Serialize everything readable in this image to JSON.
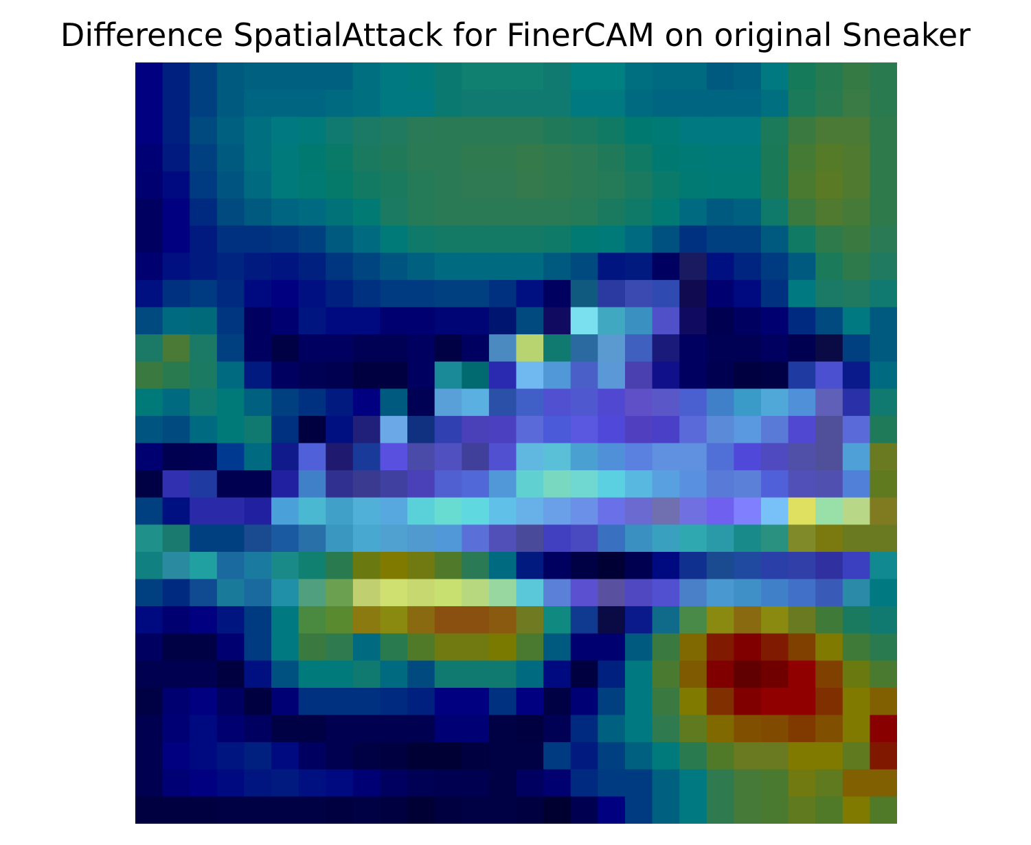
{
  "title": "Difference SpatialAttack for FinerCAM on original Sneaker",
  "chart_data": {
    "type": "heatmap",
    "title": "Difference SpatialAttack for FinerCAM on original Sneaker",
    "xlabel": "",
    "ylabel": "",
    "axes_visible": false,
    "grid": false,
    "legend": "none",
    "rows": 28,
    "cols": 28,
    "cells": [
      [
        "#000080",
        "#002080",
        "#004080",
        "#005a80",
        "#006080",
        "#006080",
        "#006080",
        "#006080",
        "#007080",
        "#007a80",
        "#007a7a",
        "#0a7a70",
        "#108070",
        "#108070",
        "#108070",
        "#107a70",
        "#008080",
        "#008080",
        "#007080",
        "#006a80",
        "#006a80",
        "#005a80",
        "#006080",
        "#007a80",
        "#157a5a",
        "#257a50",
        "#357a45",
        "#2a7a50"
      ],
      [
        "#000080",
        "#002080",
        "#004080",
        "#005a80",
        "#006580",
        "#006580",
        "#006580",
        "#006a80",
        "#007080",
        "#007a80",
        "#007a80",
        "#0a7a70",
        "#107a70",
        "#107a70",
        "#107a70",
        "#107a70",
        "#007a80",
        "#007a80",
        "#006a80",
        "#006580",
        "#006580",
        "#006580",
        "#006580",
        "#007080",
        "#1a7a5a",
        "#2a7a50",
        "#3a7a45",
        "#2a7a50"
      ],
      [
        "#000080",
        "#002080",
        "#004a80",
        "#006080",
        "#007080",
        "#007a80",
        "#007a7a",
        "#107a70",
        "#1a7a65",
        "#207a60",
        "#2a7a58",
        "#2a7a55",
        "#2a7a55",
        "#2a7a55",
        "#2a7a55",
        "#207a5a",
        "#1a7a60",
        "#107a65",
        "#007a70",
        "#007a75",
        "#007a80",
        "#007a80",
        "#007a80",
        "#1a7a5a",
        "#3a7a40",
        "#4a7a35",
        "#4a7a35",
        "#2f7a4a"
      ],
      [
        "#000075",
        "#001a80",
        "#004080",
        "#005a80",
        "#007080",
        "#007a7a",
        "#007a70",
        "#0a7a68",
        "#1a7a60",
        "#207a5a",
        "#2a7a55",
        "#2a7a55",
        "#307a50",
        "#307a50",
        "#357a4a",
        "#307a50",
        "#2a7a55",
        "#207a5a",
        "#107a65",
        "#007a70",
        "#007a75",
        "#007a78",
        "#007a78",
        "#1a7a58",
        "#457a35",
        "#557a28",
        "#507a2f",
        "#2f7a4a"
      ],
      [
        "#000070",
        "#000a80",
        "#003a80",
        "#005580",
        "#006a80",
        "#007a7a",
        "#007a72",
        "#057a6a",
        "#127a62",
        "#1a7a5d",
        "#257a58",
        "#2a7a55",
        "#2f7a52",
        "#2f7a52",
        "#357a4d",
        "#307a50",
        "#2a7a55",
        "#257a58",
        "#1a7a60",
        "#0a7a6a",
        "#007a72",
        "#007a75",
        "#007a75",
        "#1a7a58",
        "#4a7a30",
        "#5a7a25",
        "#507a2f",
        "#2f7a4a"
      ],
      [
        "#000060",
        "#000080",
        "#002a80",
        "#004a80",
        "#005a80",
        "#006580",
        "#006a80",
        "#007278",
        "#007a72",
        "#1a7a62",
        "#257a58",
        "#2a7a55",
        "#2a7a55",
        "#2a7a55",
        "#2a7a55",
        "#2a7a55",
        "#257a58",
        "#1a7a60",
        "#107a68",
        "#007a72",
        "#006a80",
        "#005a80",
        "#006080",
        "#107a6a",
        "#3a7a3f",
        "#4f7a2f",
        "#457a38",
        "#2f7a4a"
      ],
      [
        "#000060",
        "#000080",
        "#001a80",
        "#003080",
        "#003080",
        "#003580",
        "#004080",
        "#005a80",
        "#006a80",
        "#007a78",
        "#107a6a",
        "#157a65",
        "#157a65",
        "#157a65",
        "#157a65",
        "#107a68",
        "#007a72",
        "#007a78",
        "#006a80",
        "#005080",
        "#003080",
        "#004080",
        "#004080",
        "#005a80",
        "#107a65",
        "#2f7a4a",
        "#3a7a40",
        "#2a7a55"
      ],
      [
        "#000070",
        "#001080",
        "#001a80",
        "#002580",
        "#001a80",
        "#001580",
        "#002080",
        "#003580",
        "#004580",
        "#005580",
        "#006080",
        "#006a80",
        "#006a80",
        "#006a80",
        "#006a80",
        "#005a80",
        "#004a80",
        "#001580",
        "#001a80",
        "#000060",
        "#1a1a60",
        "#001080",
        "#002580",
        "#003a80",
        "#005a80",
        "#1a7a5a",
        "#2f7a4a",
        "#1f7a5f"
      ],
      [
        "#001080",
        "#003080",
        "#003a80",
        "#002a80",
        "#000a80",
        "#000080",
        "#001080",
        "#002080",
        "#003080",
        "#003a80",
        "#003a80",
        "#004080",
        "#004080",
        "#003080",
        "#001080",
        "#000060",
        "#105a80",
        "#2a3aa0",
        "#3a4ab0",
        "#2f4ab0",
        "#100a50",
        "#000070",
        "#000a80",
        "#003080",
        "#007a80",
        "#1a7a65",
        "#1f7a60",
        "#107a70"
      ],
      [
        "#004a80",
        "#006a80",
        "#006a7a",
        "#003580",
        "#000060",
        "#000070",
        "#001580",
        "#000a80",
        "#000a80",
        "#000070",
        "#000070",
        "#000575",
        "#000575",
        "#001570",
        "#004a80",
        "#100a60",
        "#7ae0f0",
        "#40a8c0",
        "#3a90c0",
        "#5050c8",
        "#100a60",
        "#000050",
        "#000060",
        "#000070",
        "#002a80",
        "#004a80",
        "#007a80",
        "#005a80"
      ],
      [
        "#1a7a65",
        "#4a7a35",
        "#1a7a65",
        "#004080",
        "#000060",
        "#000045",
        "#000060",
        "#000060",
        "#000055",
        "#000055",
        "#000060",
        "#000045",
        "#000060",
        "#4a8ac0",
        "#b8d470",
        "#107a70",
        "#2a6aa0",
        "#5a9ad0",
        "#4060c0",
        "#1a1a7a",
        "#000060",
        "#000055",
        "#000055",
        "#000060",
        "#000050",
        "#0a0a45",
        "#004080",
        "#005a80"
      ],
      [
        "#3a7a40",
        "#2a7a50",
        "#1a7a62",
        "#006a80",
        "#001a80",
        "#000060",
        "#000055",
        "#000050",
        "#000040",
        "#000040",
        "#000060",
        "#1a8a98",
        "#006a70",
        "#2a2ab0",
        "#70b8f0",
        "#5098d8",
        "#4a60c8",
        "#5a98d8",
        "#4a40b0",
        "#10108a",
        "#000060",
        "#000050",
        "#000040",
        "#000045",
        "#1f3aa0",
        "#4a50d0",
        "#0a1a8a",
        "#006a80"
      ],
      [
        "#007a78",
        "#006a80",
        "#107a70",
        "#007a78",
        "#006080",
        "#004080",
        "#003080",
        "#001a80",
        "#000080",
        "#005a80",
        "#000055",
        "#5aa0d8",
        "#5ab0e0",
        "#2a50a8",
        "#4060c8",
        "#5050d0",
        "#5058d0",
        "#5048d0",
        "#6050c8",
        "#5a58c8",
        "#4a60d0",
        "#4080c8",
        "#3a9ac8",
        "#50a8d8",
        "#5090d8",
        "#6060b8",
        "#2a30a8",
        "#107a70"
      ],
      [
        "#005580",
        "#004a80",
        "#006a80",
        "#007a78",
        "#107a70",
        "#003080",
        "#000040",
        "#001080",
        "#20207a",
        "#6aa8e8",
        "#103080",
        "#3040b0",
        "#4a40b8",
        "#4a40c0",
        "#5a6ad8",
        "#4a5ad8",
        "#5a58e0",
        "#5048d8",
        "#5040c0",
        "#4a40c8",
        "#5a6ad8",
        "#5a8ad8",
        "#5a98e0",
        "#5a7ad8",
        "#5048d0",
        "#50509a",
        "#5a6ad8",
        "#1f7a5a"
      ],
      [
        "#000070",
        "#000050",
        "#000055",
        "#003a90",
        "#006a80",
        "#101a8a",
        "#5060d8",
        "#1f1a70",
        "#1a3a9a",
        "#5a50e0",
        "#4a4aa8",
        "#5050c0",
        "#40409a",
        "#5050d0",
        "#60b8e0",
        "#5ac0d8",
        "#4aa0d0",
        "#5090d8",
        "#5a80e0",
        "#6090e0",
        "#6090e0",
        "#5070d8",
        "#5048d8",
        "#504ac0",
        "#5050a8",
        "#50509a",
        "#50a0d8",
        "#6a7a20"
      ],
      [
        "#000045",
        "#3030b0",
        "#1f3aa0",
        "#000050",
        "#000050",
        "#2020a0",
        "#4080c8",
        "#303090",
        "#3a3a90",
        "#4040a0",
        "#4a40b8",
        "#5060d0",
        "#5068d8",
        "#5098d8",
        "#60d0d0",
        "#78d8c0",
        "#70d8d0",
        "#5ad0e0",
        "#58b8e0",
        "#58a0e0",
        "#5a90e0",
        "#5a7ad8",
        "#5a80d8",
        "#5060d8",
        "#5050b8",
        "#5050b0",
        "#5080d8",
        "#607a20"
      ],
      [
        "#004080",
        "#001080",
        "#2a2aa8",
        "#2a2aa8",
        "#2020a0",
        "#4aa0d8",
        "#4ab8d0",
        "#40a0c8",
        "#50b0d8",
        "#58a8e0",
        "#5ad0d8",
        "#68dcd0",
        "#60d8e0",
        "#60c0e8",
        "#68b0e8",
        "#6aa0e8",
        "#6a90e8",
        "#6a70e8",
        "#6a6ad0",
        "#7070b0",
        "#7070e0",
        "#7060f0",
        "#8080ff",
        "#78c0f8",
        "#e0e060",
        "#98e0a8",
        "#b8d888",
        "#807a20"
      ],
      [
        "#20908a",
        "#1a7a70",
        "#004080",
        "#004080",
        "#1a4a90",
        "#1a5aa0",
        "#2a70a8",
        "#3a98c0",
        "#48a8d0",
        "#50a0d0",
        "#509ad0",
        "#5098d8",
        "#5a70d8",
        "#5050b8",
        "#4a4a9a",
        "#4040c0",
        "#4a4ac0",
        "#3a70c0",
        "#3a90c0",
        "#3aa0c0",
        "#30a8b0",
        "#2a9aa8",
        "#188a8a",
        "#2a9080",
        "#808a28",
        "#7a7a10",
        "#6a7a20",
        "#6a7a20"
      ],
      [
        "#108080",
        "#2a8aa0",
        "#20a0a0",
        "#1a6aa0",
        "#1a7aa0",
        "#1a8a88",
        "#108070",
        "#2a7a50",
        "#6a7a10",
        "#807a00",
        "#707a10",
        "#507a2a",
        "#2a7a55",
        "#006a80",
        "#001a80",
        "#000060",
        "#000045",
        "#000035",
        "#000050",
        "#000a80",
        "#103090",
        "#1a4a90",
        "#1f4aa0",
        "#2a40a8",
        "#3040a8",
        "#3030a0",
        "#3a40c0",
        "#108a90"
      ],
      [
        "#004080",
        "#002a80",
        "#104a90",
        "#1a7a9a",
        "#1a6aa0",
        "#2090a8",
        "#50a080",
        "#6aa050",
        "#c0d070",
        "#d0e070",
        "#c8d870",
        "#c8e070",
        "#b8d880",
        "#98d8a0",
        "#5ac8d8",
        "#5a80d8",
        "#5a50d0",
        "#5a50a0",
        "#5048c0",
        "#5050d0",
        "#4a80c8",
        "#4a98d0",
        "#4090c8",
        "#4080c8",
        "#4070c8",
        "#3a5ab8",
        "#2a8aa8",
        "#007a80"
      ],
      [
        "#000a80",
        "#000070",
        "#000080",
        "#001580",
        "#003a80",
        "#007a80",
        "#4a8a40",
        "#5a8a30",
        "#8a7a10",
        "#8a8a10",
        "#8a6a10",
        "#8a5010",
        "#8a5010",
        "#8a5a10",
        "#707a20",
        "#108a80",
        "#103a90",
        "#0a0a45",
        "#0a1a8a",
        "#106a8a",
        "#4a8a48",
        "#8a8a10",
        "#8a6a10",
        "#8a8a10",
        "#6a7a20",
        "#407a38",
        "#1a7a60",
        "#107a70"
      ],
      [
        "#000060",
        "#000045",
        "#000045",
        "#000070",
        "#003a80",
        "#007a80",
        "#3a7a40",
        "#307a50",
        "#006a80",
        "#2a7a50",
        "#507a28",
        "#707a10",
        "#707a10",
        "#7a7a00",
        "#4a7a30",
        "#005a80",
        "#000070",
        "#000070",
        "#005a80",
        "#3a7a40",
        "#806a00",
        "#801a00",
        "#800000",
        "#801a00",
        "#804000",
        "#807a00",
        "#407a38",
        "#2a7a50"
      ],
      [
        "#000050",
        "#000050",
        "#000050",
        "#000040",
        "#001080",
        "#005080",
        "#007a7a",
        "#007a7a",
        "#107a70",
        "#006a80",
        "#004a80",
        "#107a70",
        "#107a70",
        "#107a70",
        "#006a80",
        "#000a80",
        "#000040",
        "#002080",
        "#007a80",
        "#4a7a30",
        "#805a00",
        "#800000",
        "#600000",
        "#700000",
        "#900000",
        "#804000",
        "#6a7a10",
        "#4a7a30"
      ],
      [
        "#000045",
        "#000070",
        "#000080",
        "#000060",
        "#000040",
        "#000075",
        "#003080",
        "#003080",
        "#003080",
        "#002a80",
        "#002080",
        "#000080",
        "#000080",
        "#003080",
        "#000080",
        "#000045",
        "#000075",
        "#004080",
        "#007a80",
        "#3a7a40",
        "#807a00",
        "#803000",
        "#800000",
        "#900000",
        "#900000",
        "#803000",
        "#807a00",
        "#806000"
      ],
      [
        "#000050",
        "#000075",
        "#000a80",
        "#000070",
        "#000060",
        "#000045",
        "#000045",
        "#000050",
        "#000050",
        "#000050",
        "#000050",
        "#000075",
        "#000075",
        "#000045",
        "#000040",
        "#000055",
        "#002a80",
        "#006080",
        "#007a80",
        "#307a50",
        "#607a20",
        "#806a00",
        "#805000",
        "#804a00",
        "#803a00",
        "#805000",
        "#807a00",
        "#880000"
      ],
      [
        "#000050",
        "#000080",
        "#000a80",
        "#001580",
        "#002080",
        "#000a80",
        "#000060",
        "#000050",
        "#000045",
        "#000040",
        "#000035",
        "#000035",
        "#000040",
        "#000045",
        "#000045",
        "#003a80",
        "#001a80",
        "#004080",
        "#006080",
        "#007a7a",
        "#2a7a50",
        "#507a28",
        "#6a7a20",
        "#6a7a20",
        "#807a00",
        "#807a00",
        "#607a20",
        "#801800"
      ],
      [
        "#000050",
        "#000075",
        "#000080",
        "#000a80",
        "#001580",
        "#001a80",
        "#001080",
        "#000a80",
        "#000075",
        "#000060",
        "#000055",
        "#000050",
        "#000050",
        "#000045",
        "#000060",
        "#000070",
        "#002a80",
        "#003a80",
        "#003a80",
        "#006080",
        "#007a80",
        "#307a50",
        "#457a38",
        "#4a7a30",
        "#707a10",
        "#607a20",
        "#806000",
        "#806000"
      ],
      [
        "#000040",
        "#000040",
        "#000040",
        "#000045",
        "#000045",
        "#000045",
        "#000045",
        "#000040",
        "#000045",
        "#000040",
        "#000035",
        "#000040",
        "#000045",
        "#000045",
        "#000040",
        "#000030",
        "#000050",
        "#000080",
        "#003a80",
        "#006080",
        "#007a80",
        "#307a50",
        "#457a38",
        "#4a7a30",
        "#607a20",
        "#507a28",
        "#807a00",
        "#507a28"
      ]
    ]
  }
}
